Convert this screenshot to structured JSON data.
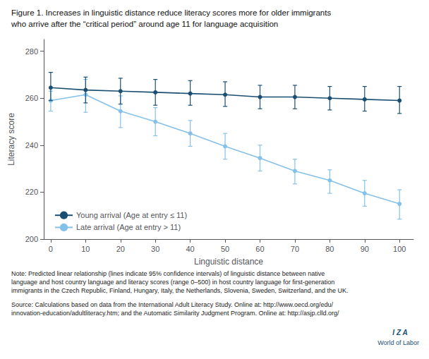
{
  "chart_data": {
    "type": "line",
    "title": "Figure 1. Increases in linguistic distance reduce literacy scores more for older immigrants\nwho arrive after the “critical period” around age 11 for language acquisition",
    "xlabel": "Linguistic distance",
    "ylabel": "Literacy score",
    "x": [
      0,
      10,
      20,
      30,
      40,
      50,
      60,
      70,
      80,
      90,
      100
    ],
    "series": [
      {
        "name": "Young arrival (Age at entry ≤ 11)",
        "color": "#1b4f72",
        "marker": "circle",
        "values": [
          264.5,
          263.5,
          263.0,
          262.5,
          262.0,
          261.5,
          260.5,
          260.5,
          260.0,
          259.5,
          259.0
        ],
        "err_upper": [
          6.5,
          5.5,
          5.5,
          5.5,
          5.5,
          5.5,
          5.0,
          5.0,
          5.0,
          5.5,
          6.0
        ],
        "err_lower": [
          5.5,
          5.5,
          5.5,
          5.5,
          5.0,
          5.0,
          5.0,
          5.0,
          5.0,
          5.0,
          5.5
        ]
      },
      {
        "name": "Late arrival (Age at entry > 11)",
        "color": "#85c1e9",
        "marker": "circle",
        "values": [
          259.0,
          261.5,
          254.5,
          250.0,
          245.0,
          239.5,
          234.5,
          229.0,
          225.0,
          219.5,
          215.0
        ],
        "err_upper": [
          4.0,
          6.5,
          6.5,
          6.0,
          5.5,
          5.5,
          5.5,
          5.0,
          4.5,
          5.5,
          6.0
        ],
        "err_lower": [
          4.5,
          7.5,
          7.0,
          6.0,
          5.5,
          5.5,
          5.5,
          5.5,
          5.5,
          5.5,
          6.5
        ]
      }
    ],
    "xlim": [
      -2,
      104
    ],
    "xticks": [
      0,
      10,
      20,
      30,
      40,
      50,
      60,
      70,
      80,
      90,
      100
    ],
    "ylim": [
      200,
      285
    ],
    "yticks": [
      200,
      220,
      240,
      260,
      280
    ],
    "grid": false,
    "legend": "lower left",
    "annotations": [
      "Note: Predicted linear relationship (lines indicate 95% confidence intervals) of linguistic distance between native\nlanguage and host country language and literacy scores (range 0–500) in host country language for first-generation\nimmigrants in the Czech Republic, Finland, Hungary, Italy, the Netherlands, Slovenia, Sweden, Switzerland, and the UK.",
      "Source: Calculations based on data from the International Adult Literacy Study. Online at: http://www.oecd.org/edu/\ninnovation-education/adultliteracy.htm; and the Automatic Similarity Judgment Program. Online at: http://asjp.clld.org/",
      "I Z A",
      "World of Labor"
    ]
  }
}
